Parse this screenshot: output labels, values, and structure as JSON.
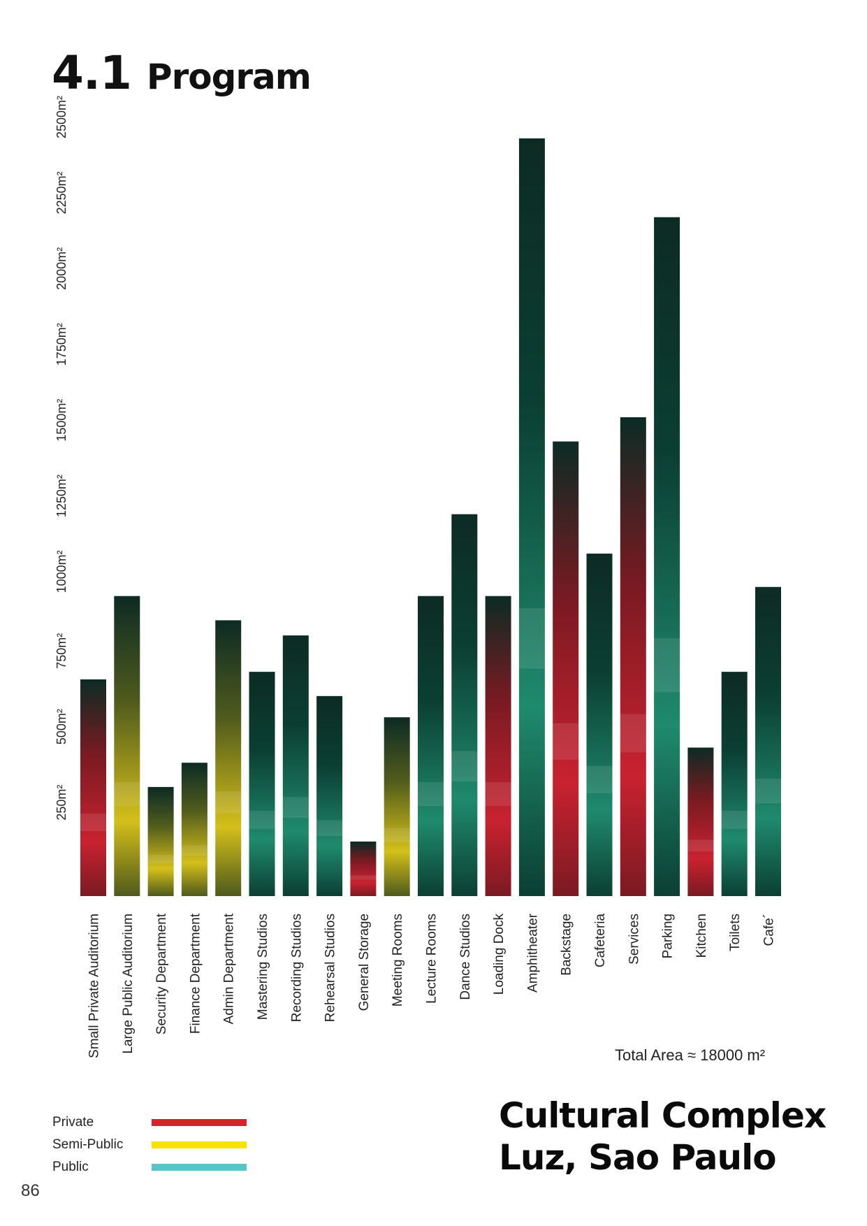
{
  "heading": {
    "number": "4.1",
    "title": "Program"
  },
  "chart_data": {
    "type": "bar",
    "title": "",
    "xlabel": "",
    "ylabel": "",
    "ylim": [
      0,
      2500
    ],
    "y_ticks": [
      "250m²",
      "500m²",
      "750m²",
      "1000m²",
      "1250m²",
      "1500m²",
      "1750m²",
      "2000m²",
      "2250m²",
      "2500m²"
    ],
    "y_tick_values": [
      250,
      500,
      750,
      1000,
      1250,
      1500,
      1750,
      2000,
      2250,
      2500
    ],
    "grid": false,
    "categories": [
      "Small Private Auditorium",
      "Large Public Auditorium",
      "Security Department",
      "Finance Department",
      "Admin Department",
      "Mastering Studios",
      "Recording Studios",
      "Rehearsal Studios",
      "General Storage",
      "Meeting Rooms",
      "Lecture Rooms",
      "Dance Studios",
      "Loading Dock",
      "Amphitheater",
      "Backstage",
      "Cafeteria",
      "Services",
      "Parking",
      "Kitchen",
      "Toilets",
      "Cafe´"
    ],
    "values": [
      715,
      990,
      360,
      440,
      910,
      740,
      860,
      660,
      180,
      590,
      990,
      1260,
      990,
      2500,
      1500,
      1130,
      1580,
      2240,
      490,
      740,
      1020
    ],
    "access": [
      "Private",
      "Semi-Public",
      "Semi-Public",
      "Semi-Public",
      "Semi-Public",
      "Public",
      "Public",
      "Public",
      "Private",
      "Semi-Public",
      "Public",
      "Public",
      "Private",
      "Public",
      "Private",
      "Public",
      "Private",
      "Public",
      "Private",
      "Public",
      "Public"
    ],
    "total_area": "Total Area ≈ 18000 m²"
  },
  "legend": [
    {
      "label": "Private",
      "color": "#d1242d"
    },
    {
      "label": "Semi-Public",
      "color": "#f7e200"
    },
    {
      "label": "Public",
      "color": "#5ac4c9"
    }
  ],
  "palette": {
    "private": [
      "#7a1a22",
      "#c8222f"
    ],
    "semi_public": [
      "#4f5a1c",
      "#d4bf1a"
    ],
    "public": [
      "#0b3f33",
      "#1f8a6d"
    ],
    "dark": "#0c2b24"
  },
  "complex": {
    "line1": "Cultural Complex",
    "line2": "Luz, Sao Paulo"
  },
  "page_number": "86"
}
